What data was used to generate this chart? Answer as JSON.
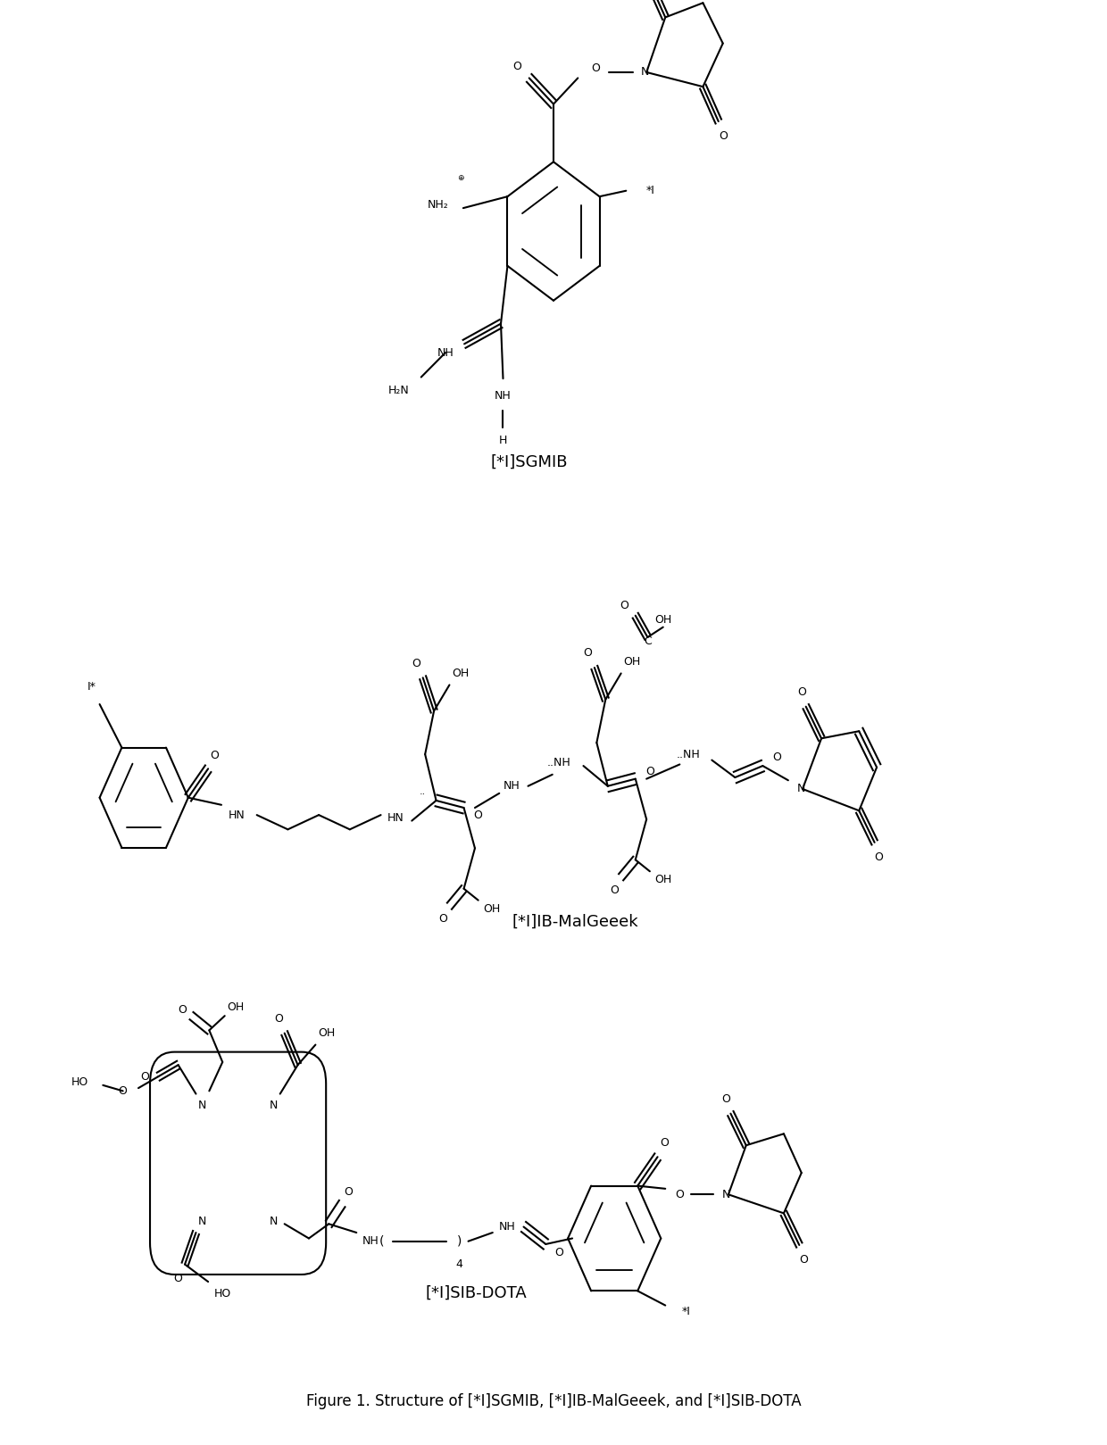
{
  "title": "Figure 1. Structure of [*I]SGMIB, [*I]IB-MalGeeek, and [*I]SIB-DOTA",
  "label_sgmib": "[*I]SGMIB",
  "label_malgeeek": "[*I]IB-MalGeeek",
  "label_sibdota": "[*I]SIB-DOTA",
  "fig_width": 12.4,
  "fig_height": 16.19,
  "bg": "#ffffff",
  "lc": "#000000"
}
